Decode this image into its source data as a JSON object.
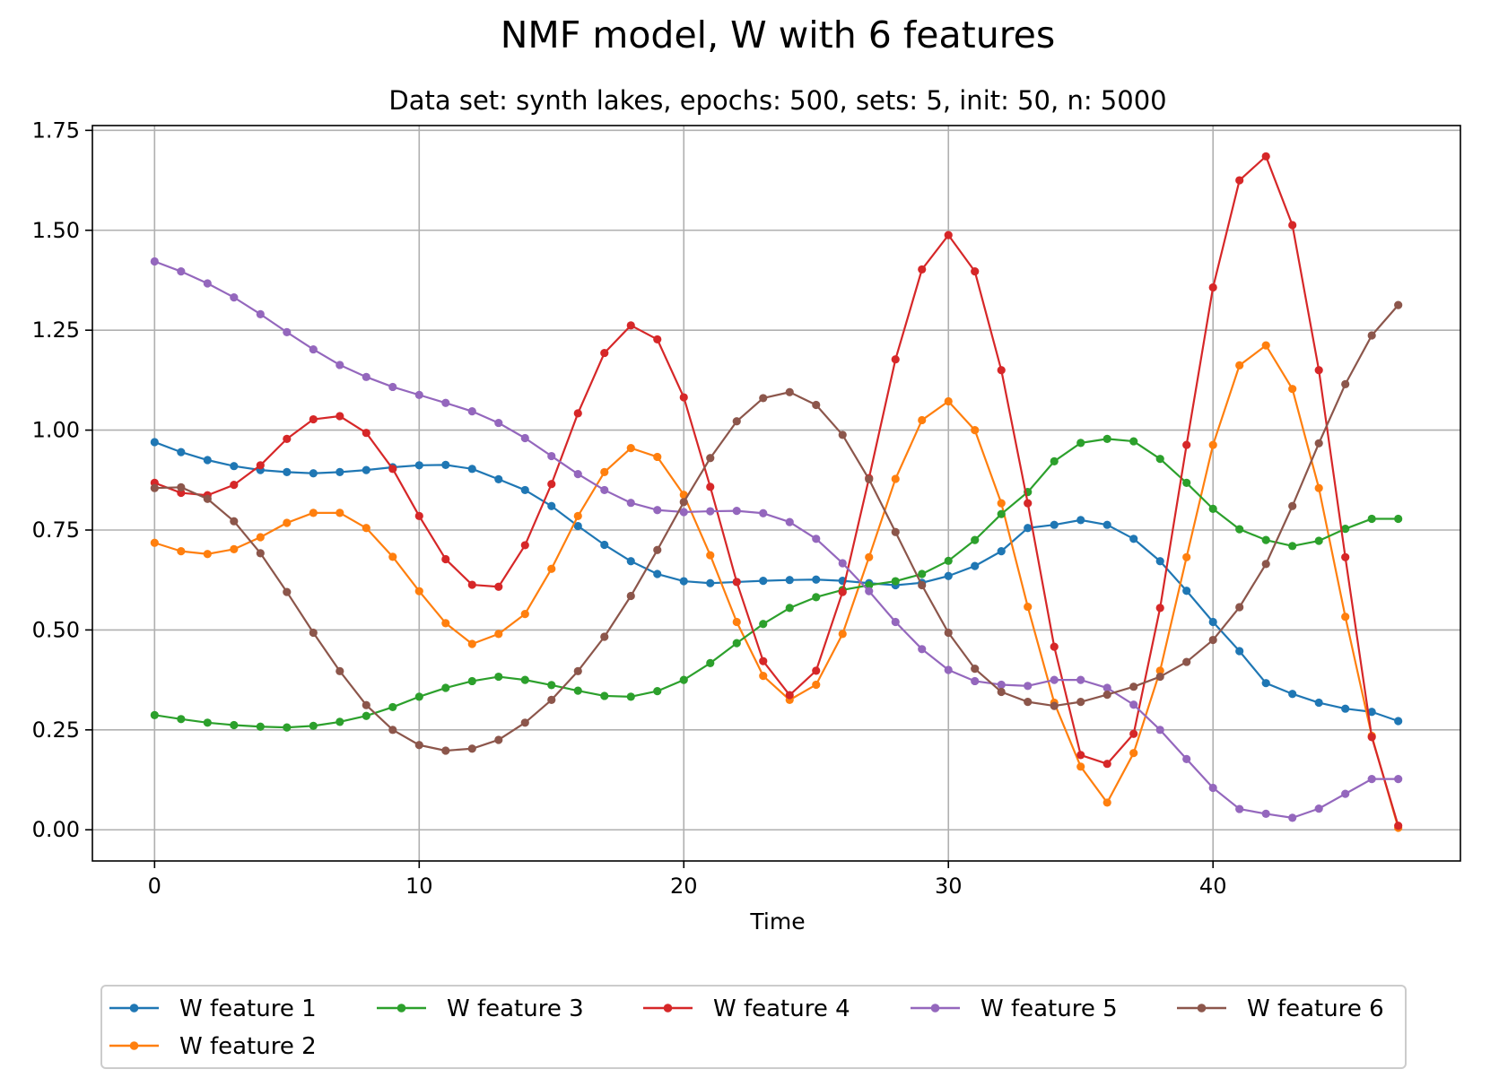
{
  "chart_data": {
    "type": "line",
    "title": "NMF model, W with 6 features",
    "subtitle": "Data set: synth lakes, epochs: 500, sets: 5, init: 50, n: 5000",
    "xlabel": "Time",
    "ylabel": "",
    "xlim": [
      -2.35,
      49.35
    ],
    "ylim": [
      -0.078,
      1.762
    ],
    "x_ticks": [
      0,
      10,
      20,
      30,
      40
    ],
    "x_tick_labels": [
      "0",
      "10",
      "20",
      "30",
      "40"
    ],
    "y_ticks": [
      0,
      0.25,
      0.5,
      0.75,
      1.0,
      1.25,
      1.5,
      1.75
    ],
    "y_tick_labels": [
      "0.00",
      "0.25",
      "0.50",
      "0.75",
      "1.00",
      "1.25",
      "1.50",
      "1.75"
    ],
    "grid": true,
    "legend_position": "bottom-center",
    "x": [
      0,
      1,
      2,
      3,
      4,
      5,
      6,
      7,
      8,
      9,
      10,
      11,
      12,
      13,
      14,
      15,
      16,
      17,
      18,
      19,
      20,
      21,
      22,
      23,
      24,
      25,
      26,
      27,
      28,
      29,
      30,
      31,
      32,
      33,
      34,
      35,
      36,
      37,
      38,
      39,
      40,
      41,
      42,
      43,
      44,
      45,
      46,
      47
    ],
    "series": [
      {
        "name": "W feature 1",
        "color": "#1f77b4",
        "values": [
          0.97,
          0.945,
          0.925,
          0.91,
          0.9,
          0.895,
          0.892,
          0.895,
          0.9,
          0.907,
          0.912,
          0.913,
          0.903,
          0.877,
          0.85,
          0.81,
          0.76,
          0.713,
          0.672,
          0.64,
          0.622,
          0.617,
          0.62,
          0.623,
          0.625,
          0.626,
          0.623,
          0.617,
          0.612,
          0.618,
          0.635,
          0.66,
          0.697,
          0.755,
          0.763,
          0.775,
          0.763,
          0.728,
          0.672,
          0.598,
          0.52,
          0.447,
          0.367,
          0.34,
          0.318,
          0.303,
          0.295,
          0.272
        ]
      },
      {
        "name": "W feature 2",
        "color": "#ff7f0e",
        "values": [
          0.718,
          0.697,
          0.69,
          0.702,
          0.732,
          0.768,
          0.793,
          0.793,
          0.755,
          0.683,
          0.597,
          0.517,
          0.465,
          0.49,
          0.54,
          0.653,
          0.785,
          0.895,
          0.955,
          0.933,
          0.838,
          0.687,
          0.52,
          0.385,
          0.325,
          0.363,
          0.49,
          0.682,
          0.878,
          1.025,
          1.072,
          1.0,
          0.817,
          0.558,
          0.318,
          0.158,
          0.068,
          0.192,
          0.398,
          0.682,
          0.963,
          1.162,
          1.212,
          1.103,
          0.855,
          0.533,
          0.235,
          0.005
        ]
      },
      {
        "name": "W feature 3",
        "color": "#2ca02c",
        "values": [
          0.287,
          0.277,
          0.268,
          0.262,
          0.258,
          0.256,
          0.26,
          0.27,
          0.285,
          0.307,
          0.333,
          0.355,
          0.372,
          0.383,
          0.375,
          0.362,
          0.348,
          0.335,
          0.333,
          0.347,
          0.375,
          0.417,
          0.467,
          0.515,
          0.555,
          0.582,
          0.6,
          0.612,
          0.622,
          0.64,
          0.673,
          0.725,
          0.79,
          0.845,
          0.922,
          0.968,
          0.978,
          0.972,
          0.928,
          0.868,
          0.803,
          0.752,
          0.725,
          0.71,
          0.723,
          0.753,
          0.778,
          0.778
        ]
      },
      {
        "name": "W feature 4",
        "color": "#d62728",
        "values": [
          0.868,
          0.843,
          0.837,
          0.863,
          0.912,
          0.978,
          1.027,
          1.035,
          0.993,
          0.903,
          0.785,
          0.677,
          0.613,
          0.608,
          0.712,
          0.865,
          1.042,
          1.193,
          1.262,
          1.227,
          1.082,
          0.858,
          0.62,
          0.422,
          0.337,
          0.398,
          0.595,
          0.88,
          1.177,
          1.402,
          1.488,
          1.397,
          1.15,
          0.817,
          0.458,
          0.187,
          0.165,
          0.24,
          0.555,
          0.963,
          1.357,
          1.625,
          1.685,
          1.513,
          1.15,
          0.682,
          0.232,
          0.01
        ]
      },
      {
        "name": "W feature 5",
        "color": "#9467bd",
        "values": [
          1.422,
          1.397,
          1.367,
          1.332,
          1.29,
          1.245,
          1.202,
          1.163,
          1.133,
          1.108,
          1.088,
          1.068,
          1.047,
          1.018,
          0.98,
          0.935,
          0.89,
          0.85,
          0.818,
          0.8,
          0.795,
          0.797,
          0.798,
          0.792,
          0.77,
          0.728,
          0.667,
          0.597,
          0.52,
          0.452,
          0.4,
          0.372,
          0.363,
          0.36,
          0.375,
          0.375,
          0.355,
          0.313,
          0.25,
          0.177,
          0.105,
          0.052,
          0.04,
          0.03,
          0.053,
          0.09,
          0.127,
          0.127
        ]
      },
      {
        "name": "W feature 6",
        "color": "#8c564b",
        "values": [
          0.855,
          0.857,
          0.828,
          0.772,
          0.692,
          0.595,
          0.493,
          0.397,
          0.312,
          0.25,
          0.212,
          0.198,
          0.203,
          0.225,
          0.268,
          0.325,
          0.397,
          0.483,
          0.585,
          0.7,
          0.82,
          0.93,
          1.022,
          1.08,
          1.095,
          1.063,
          0.988,
          0.877,
          0.745,
          0.612,
          0.493,
          0.403,
          0.345,
          0.32,
          0.31,
          0.32,
          0.338,
          0.358,
          0.383,
          0.42,
          0.475,
          0.557,
          0.665,
          0.81,
          0.967,
          1.115,
          1.237,
          1.313
        ]
      }
    ]
  }
}
